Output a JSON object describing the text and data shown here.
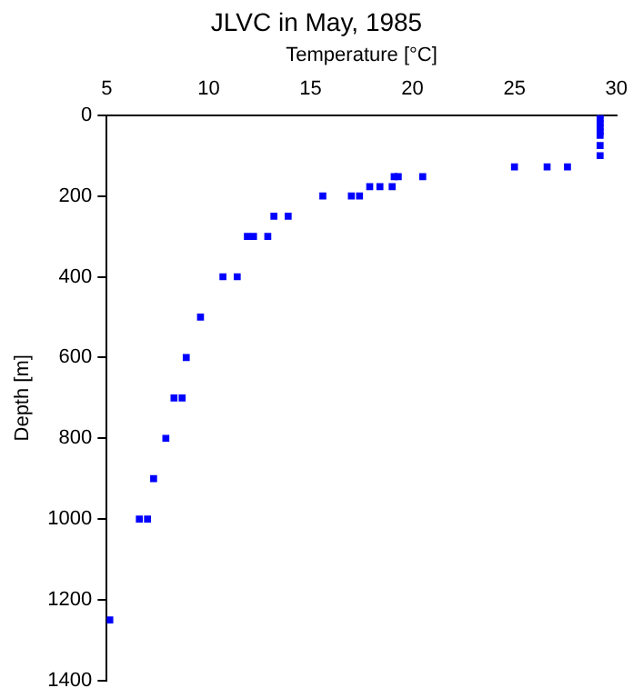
{
  "chart_data": {
    "type": "scatter",
    "title": "JLVC in May, 1985",
    "xlabel": "Temperature [°C]",
    "ylabel": "Depth [m]",
    "x": [
      29.2,
      29.2,
      29.2,
      29.2,
      29.2,
      29.2,
      29.2,
      29.2,
      25.0,
      26.6,
      27.6,
      19.1,
      19.3,
      20.5,
      17.9,
      18.4,
      19.0,
      15.6,
      17.0,
      17.4,
      13.2,
      13.9,
      11.9,
      12.2,
      12.9,
      10.7,
      11.4,
      9.6,
      8.9,
      8.3,
      8.7,
      7.9,
      7.3,
      6.6,
      7.0,
      5.15
    ],
    "values": [
      0,
      10,
      20,
      30,
      40,
      50,
      75,
      100,
      128,
      128,
      128,
      152,
      152,
      152,
      177,
      177,
      177,
      200,
      200,
      200,
      250,
      250,
      300,
      300,
      300,
      400,
      400,
      500,
      600,
      700,
      700,
      800,
      900,
      1000,
      1000,
      1250
    ],
    "color": "#0000ff",
    "marker": "square",
    "xlim": [
      5,
      30
    ],
    "xticks": [
      5,
      10,
      15,
      20,
      25,
      30
    ],
    "ylim": [
      1400,
      0
    ],
    "yticks": [
      0,
      200,
      400,
      600,
      800,
      1000,
      1200,
      1400
    ],
    "grid": false,
    "legend": false
  }
}
